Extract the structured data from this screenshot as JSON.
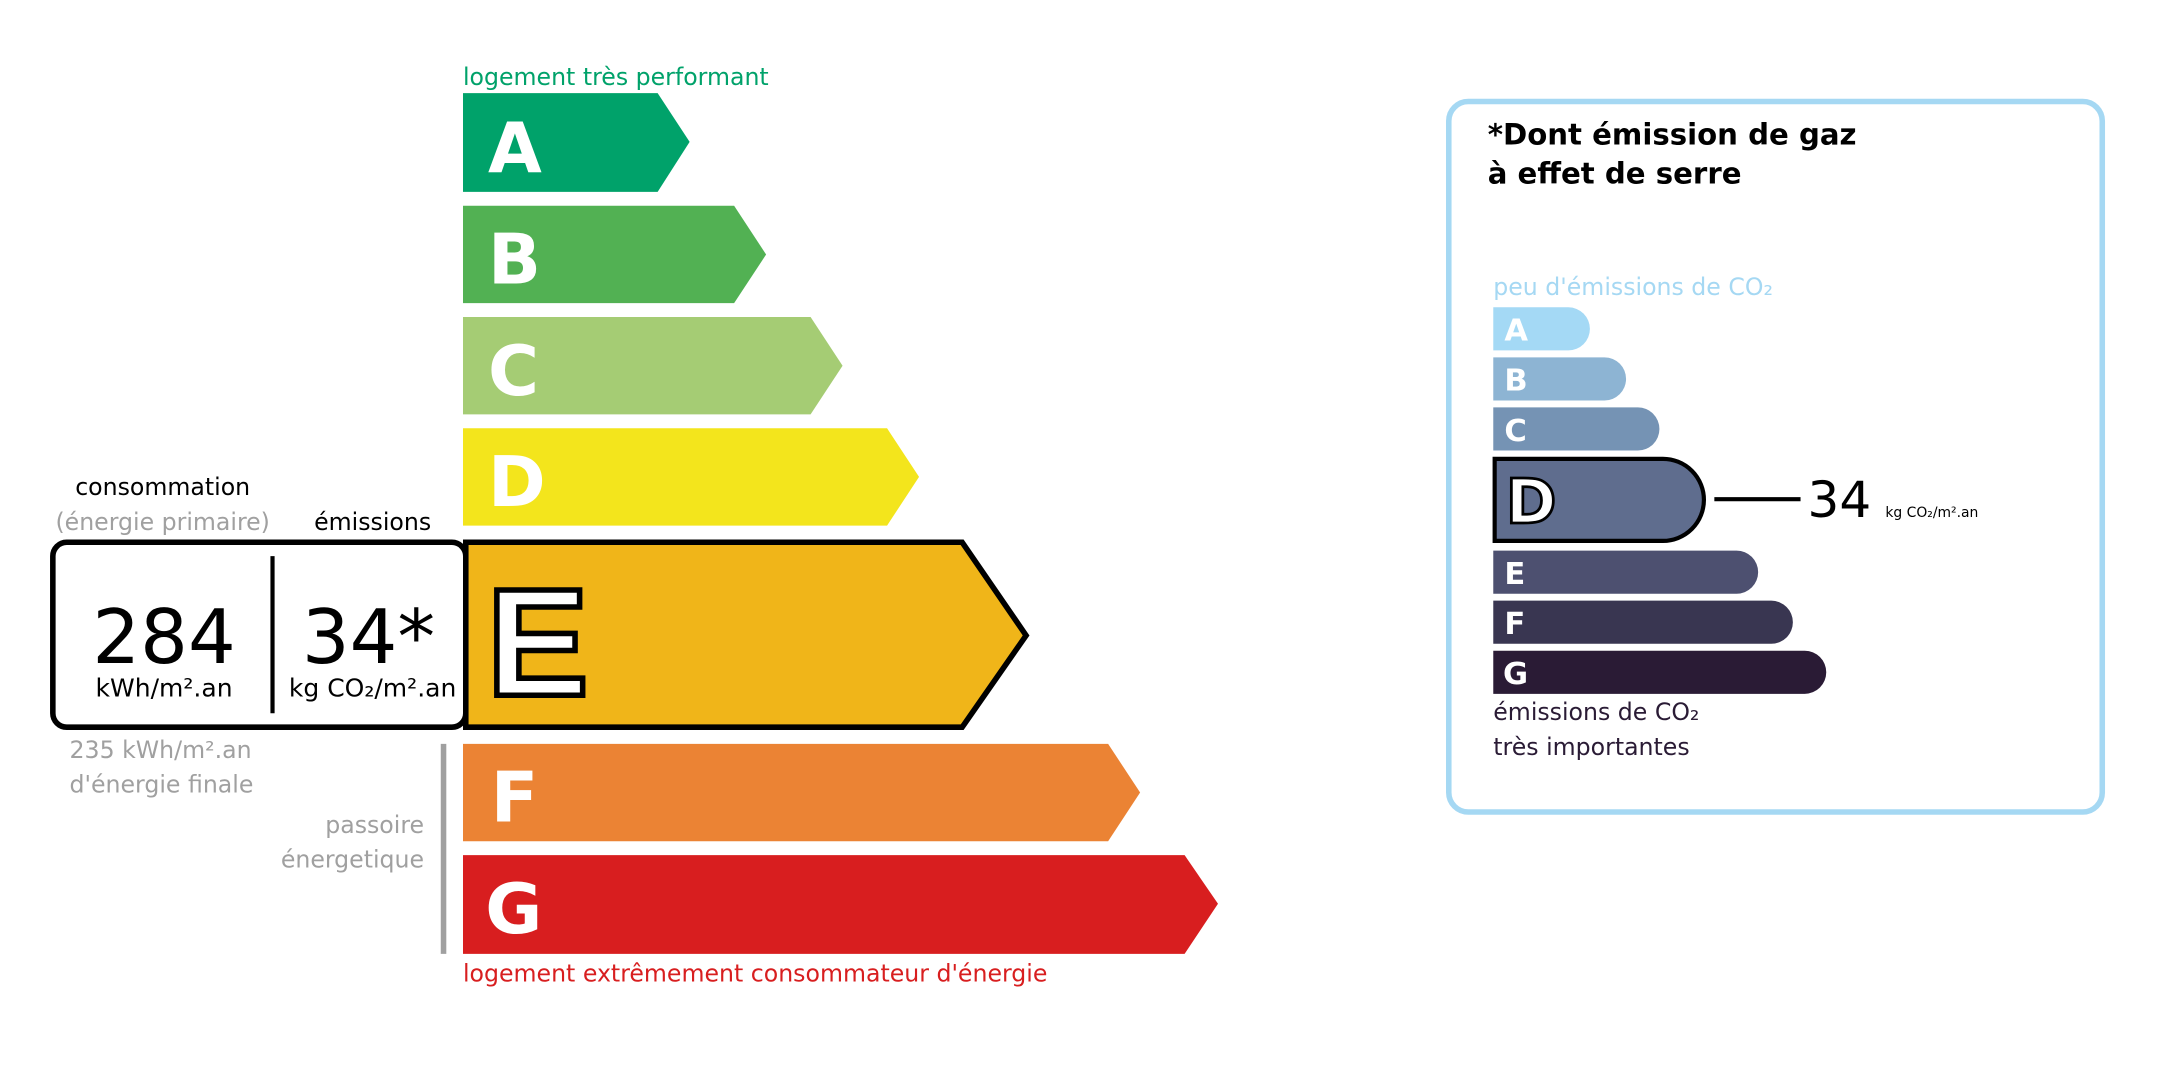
{
  "energy_label": {
    "top_caption": "logement très performant",
    "bottom_caption": "logement extrêmement consommateur d'énergie",
    "classes": [
      {
        "letter": "A",
        "color": "#00a26a"
      },
      {
        "letter": "B",
        "color": "#52b153"
      },
      {
        "letter": "C",
        "color": "#a5cc74"
      },
      {
        "letter": "D",
        "color": "#f3e51c"
      },
      {
        "letter": "E",
        "color": "#f0b519"
      },
      {
        "letter": "F",
        "color": "#eb8334"
      },
      {
        "letter": "G",
        "color": "#d81e1f"
      }
    ],
    "current_class": "E",
    "consumption_title": "consommation",
    "consumption_subtitle": "(énergie primaire)",
    "emissions_title": "émissions",
    "consumption_value": "284",
    "consumption_unit": "kWh/m².an",
    "emissions_value": "34*",
    "emissions_unit": "kg CO₂/m².an",
    "final_energy_line1": "235 kWh/m².an",
    "final_energy_line2": "d'énergie finale",
    "passoire_line1": "passoire",
    "passoire_line2": "énergetique"
  },
  "ghg_label": {
    "title_line1": "*Dont émission de gaz",
    "title_line2": "à effet de serre",
    "top_caption": "peu d'émissions de CO₂",
    "bottom_caption_line1": "émissions de CO₂",
    "bottom_caption_line2": "très importantes",
    "classes": [
      {
        "letter": "A",
        "color": "#a4d9f5"
      },
      {
        "letter": "B",
        "color": "#8db4d3"
      },
      {
        "letter": "C",
        "color": "#7593b4"
      },
      {
        "letter": "D",
        "color": "#5f6d8e"
      },
      {
        "letter": "E",
        "color": "#4d5070"
      },
      {
        "letter": "F",
        "color": "#393651"
      },
      {
        "letter": "G",
        "color": "#2a1b35"
      }
    ],
    "current_class": "D",
    "value": "34",
    "unit": "kg CO₂/m².an",
    "border_color": "#a5d8f3"
  }
}
